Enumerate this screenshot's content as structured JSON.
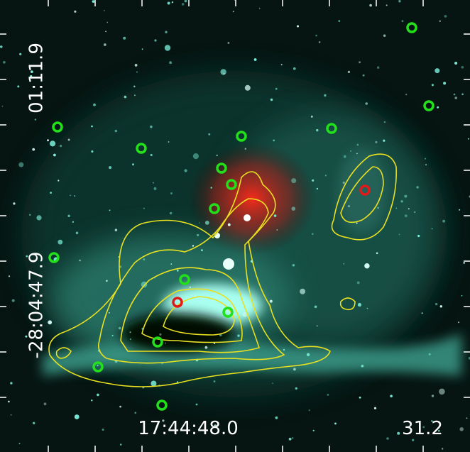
{
  "axes": {
    "y_labels": [
      "01:11.9",
      "-28:04:47.9"
    ],
    "x_labels": [
      "17:44:48.0",
      "31.2"
    ]
  }
}
